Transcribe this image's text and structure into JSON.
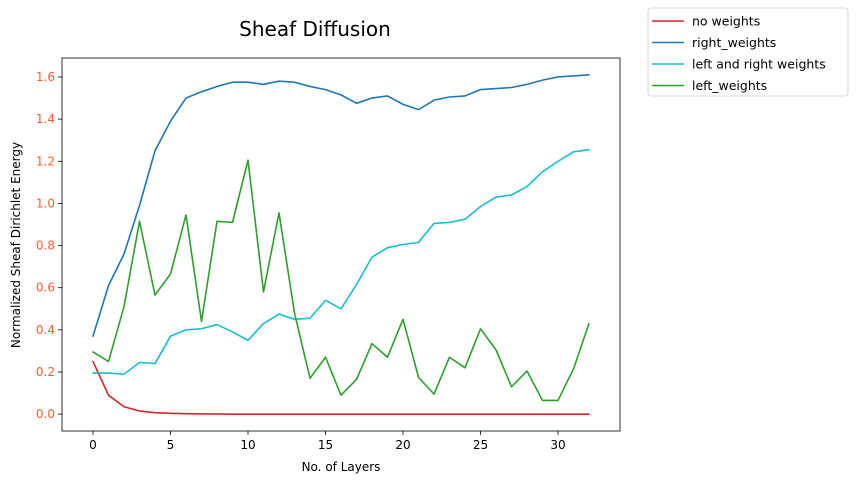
{
  "chart_data": {
    "type": "line",
    "title": "Sheaf Diffusion",
    "xlabel": "No. of Layers",
    "ylabel": "Normalized Sheaf Dirichlet Energy",
    "xlim": [
      -2,
      34
    ],
    "ylim": [
      -0.08,
      1.69
    ],
    "x_ticks": [
      0,
      5,
      10,
      15,
      20,
      25,
      30
    ],
    "y_ticks": [
      0.0,
      0.2,
      0.4,
      0.6,
      0.8,
      1.0,
      1.2,
      1.4,
      1.6
    ],
    "y_tick_color": "#ff5c33",
    "legend_position": "outside-top-right",
    "grid": false,
    "x": [
      0,
      1,
      2,
      3,
      4,
      5,
      6,
      7,
      8,
      9,
      10,
      11,
      12,
      13,
      14,
      15,
      16,
      17,
      18,
      19,
      20,
      21,
      22,
      23,
      24,
      25,
      26,
      27,
      28,
      29,
      30,
      31,
      32
    ],
    "series": [
      {
        "name": "no weights",
        "color": "#d62728",
        "values": [
          0.25,
          0.09,
          0.035,
          0.015,
          0.007,
          0.004,
          0.002,
          0.001,
          0.001,
          0,
          0,
          0,
          0,
          0,
          0,
          0,
          0,
          0,
          0,
          0,
          0,
          0,
          0,
          0,
          0,
          0,
          0,
          0,
          0,
          0,
          0,
          0,
          0
        ]
      },
      {
        "name": "right_weights",
        "color": "#1f77b4",
        "values": [
          0.37,
          0.61,
          0.76,
          0.99,
          1.25,
          1.39,
          1.5,
          1.53,
          1.555,
          1.575,
          1.575,
          1.565,
          1.58,
          1.575,
          1.555,
          1.54,
          1.515,
          1.475,
          1.5,
          1.51,
          1.47,
          1.445,
          1.49,
          1.505,
          1.51,
          1.54,
          1.545,
          1.55,
          1.565,
          1.585,
          1.6,
          1.605,
          1.61
        ]
      },
      {
        "name": "left and right weights",
        "color": "#17becf",
        "values": [
          0.195,
          0.195,
          0.19,
          0.245,
          0.24,
          0.37,
          0.4,
          0.405,
          0.425,
          0.39,
          0.35,
          0.43,
          0.475,
          0.45,
          0.455,
          0.54,
          0.5,
          0.615,
          0.745,
          0.79,
          0.805,
          0.815,
          0.905,
          0.91,
          0.925,
          0.985,
          1.03,
          1.04,
          1.08,
          1.15,
          1.2,
          1.245,
          1.255
        ]
      },
      {
        "name": "left_weights",
        "color": "#2ca02c",
        "values": [
          0.295,
          0.25,
          0.51,
          0.915,
          0.565,
          0.665,
          0.945,
          0.44,
          0.915,
          0.91,
          1.205,
          0.58,
          0.955,
          0.48,
          0.17,
          0.27,
          0.09,
          0.165,
          0.335,
          0.27,
          0.45,
          0.175,
          0.095,
          0.27,
          0.22,
          0.405,
          0.305,
          0.13,
          0.205,
          0.065,
          0.065,
          0.215,
          0.43
        ]
      }
    ]
  }
}
